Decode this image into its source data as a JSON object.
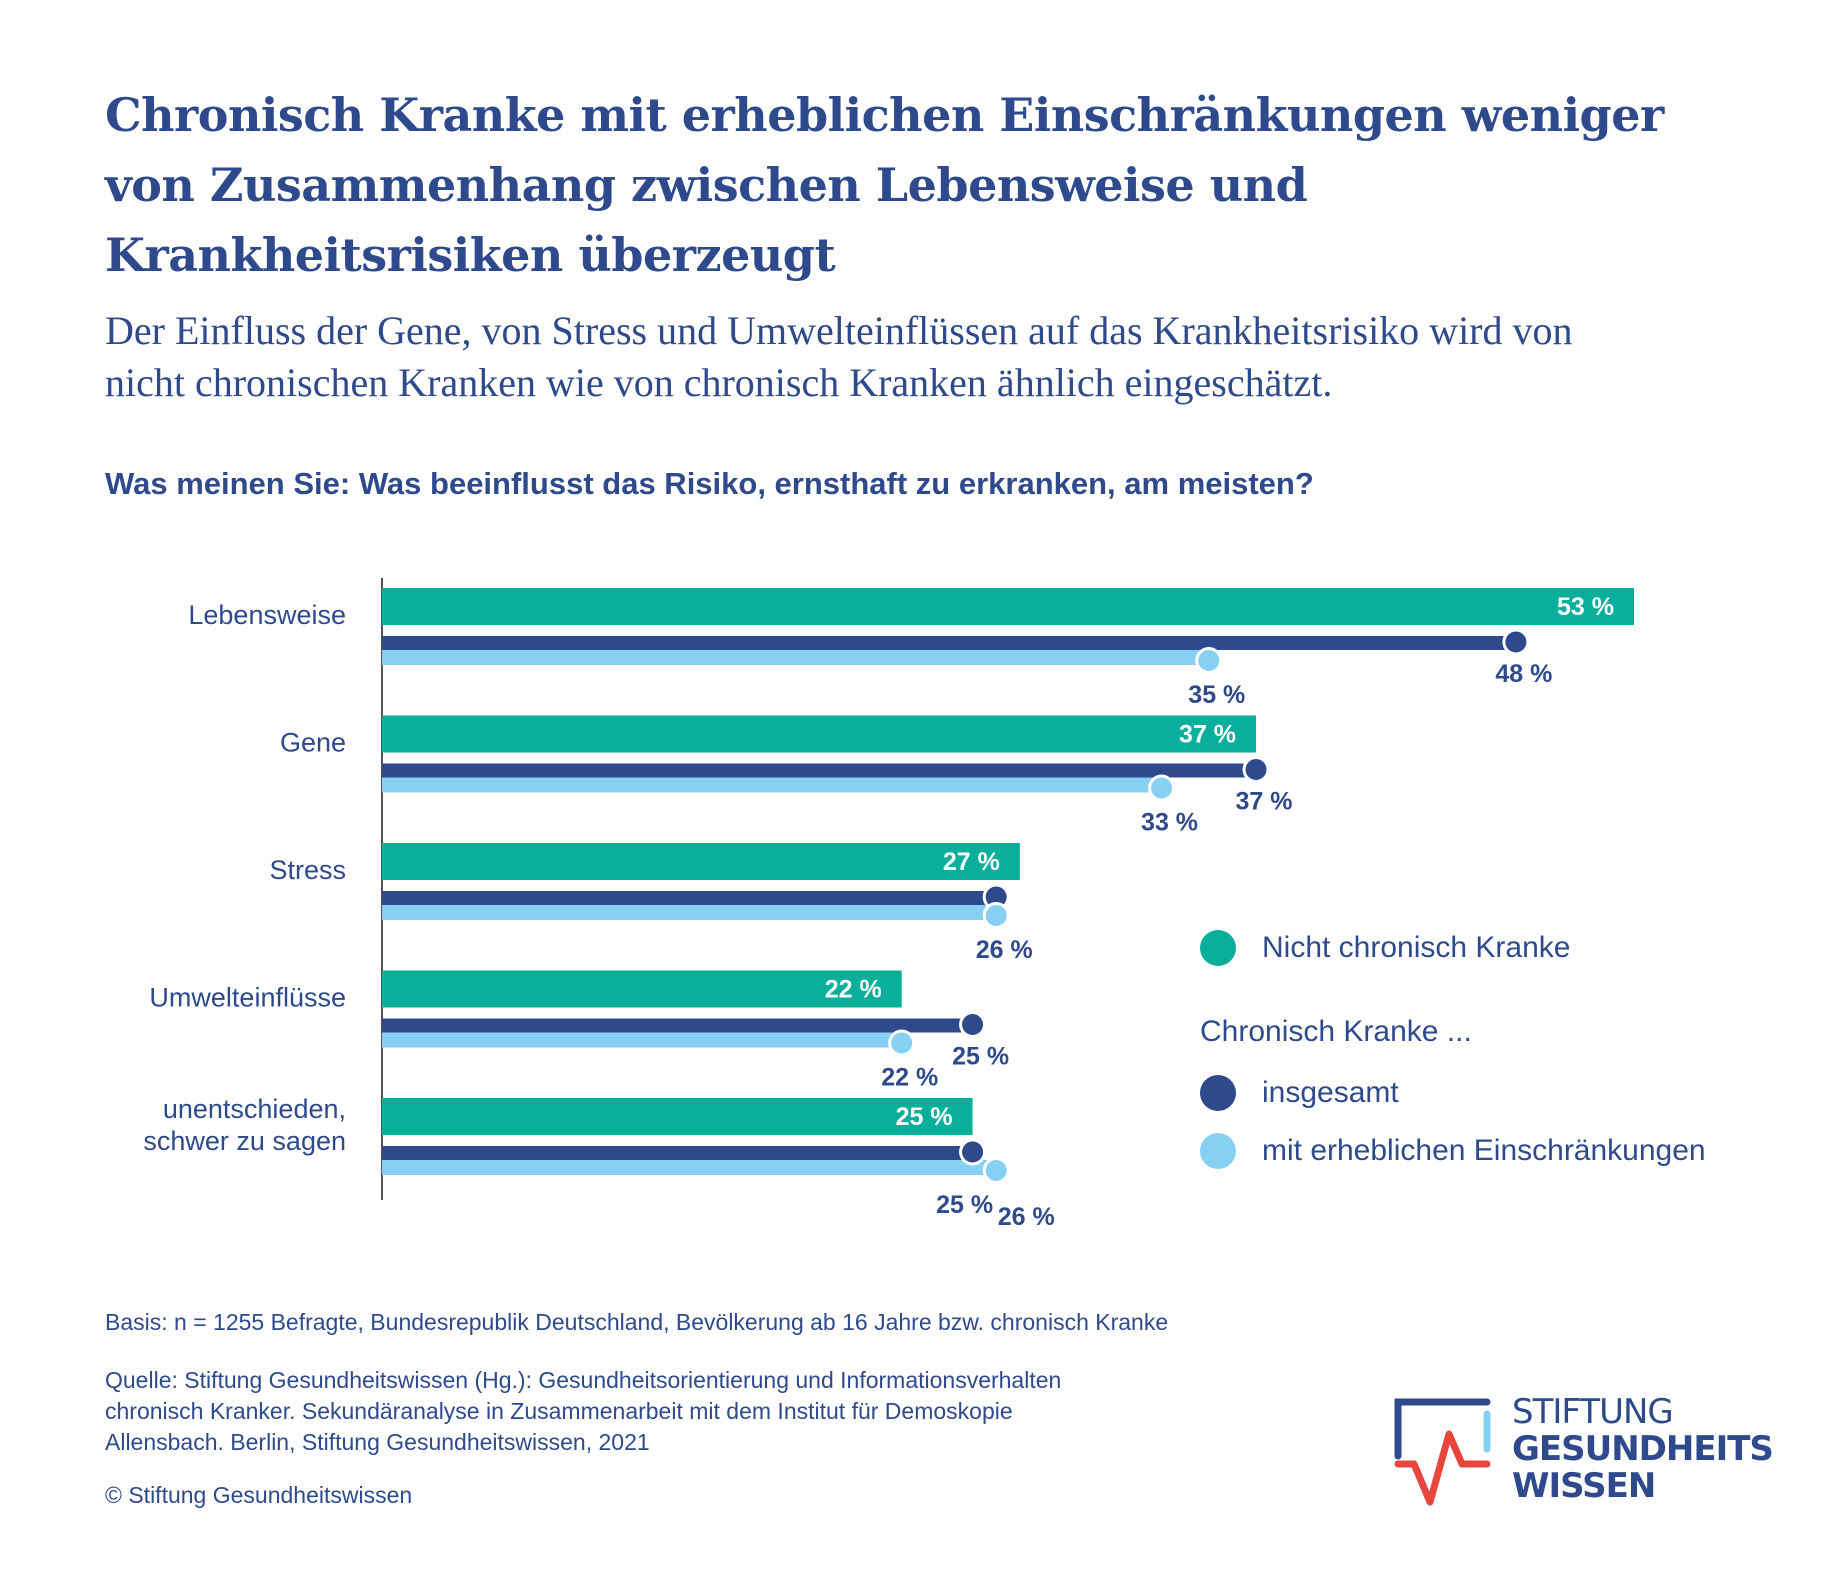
{
  "title": "Chronisch Kranke mit erheblichen Einschränkungen weniger von Zusammenhang zwischen Lebensweise und Krankheitsrisiken überzeugt",
  "title_lines": [
    "Chronisch Kranke mit erheblichen Einschränkungen weniger",
    "von Zusammenhang zwischen Lebensweise und",
    "Krankheitsrisiken überzeugt"
  ],
  "subtitle_lines": [
    "Der Einfluss der Gene, von Stress und Umwelteinflüssen auf das Krankheitsrisiko wird von",
    "nicht chronischen Kranken wie von chronisch Kranken ähnlich eingeschätzt."
  ],
  "question": "Was meinen Sie: Was beeinflusst das Risiko, ernsthaft zu erkranken, am meisten?",
  "colors": {
    "text": "#2e4a8c",
    "teal": "#0aaf9c",
    "navy": "#2e4a8c",
    "light_blue": "#86d0f4",
    "logo_red": "#e8463c"
  },
  "chart_data": {
    "type": "bar",
    "orientation": "horizontal",
    "title": "Was meinen Sie: Was beeinflusst das Risiko, ernsthaft zu erkranken, am meisten?",
    "xlabel": "",
    "ylabel": "",
    "unit": "%",
    "xlim": [
      0,
      53
    ],
    "grid": false,
    "legend_position": "right",
    "categories": [
      [
        "Lebensweise"
      ],
      [
        "Gene"
      ],
      [
        "Stress"
      ],
      [
        "Umwelteinflüsse"
      ],
      [
        "unentschieden,",
        "schwer zu sagen"
      ]
    ],
    "series": [
      {
        "name": "Nicht chronisch Kranke",
        "color": "#0aaf9c",
        "values": [
          53,
          37,
          27,
          22,
          25
        ],
        "labels": [
          "53 %",
          "37 %",
          "27 %",
          "22 %",
          "25 %"
        ]
      },
      {
        "name": "Chronisch Kranke insgesamt",
        "color": "#2e4a8c",
        "values": [
          48,
          37,
          26,
          25,
          25
        ],
        "labels": [
          "48 %",
          "37 %",
          "",
          "25 %",
          "25 %"
        ]
      },
      {
        "name": "Chronisch Kranke mit erheblichen Einschränkungen",
        "color": "#86d0f4",
        "values": [
          35,
          33,
          26,
          22,
          26
        ],
        "labels": [
          "35 %",
          "33 %",
          "26 %",
          "22 %",
          "26 %"
        ]
      }
    ]
  },
  "legend": {
    "item_1": "Nicht chronisch Kranke",
    "group_heading": "Chronisch Kranke ...",
    "item_2": "insgesamt",
    "item_3": "mit erheblichen Einschränkungen"
  },
  "footer": {
    "basis": "Basis: n = 1255 Befragte, Bundesrepublik Deutschland, Bevölkerung ab 16 Jahre bzw. chronisch Kranke",
    "source_lines": [
      "Quelle: Stiftung Gesundheitswissen (Hg.): Gesundheitsorientierung und Informationsverhalten",
      "chronisch Kranker. Sekundäranalyse in Zusammenarbeit mit dem Institut für Demoskopie",
      "Allensbach. Berlin, Stiftung Gesundheitswissen, 2021"
    ],
    "copyright": "© Stiftung Gesundheitswissen"
  },
  "logo": {
    "lines": [
      "STIFTUNG",
      "GESUNDHEITS",
      "WISSEN"
    ]
  }
}
